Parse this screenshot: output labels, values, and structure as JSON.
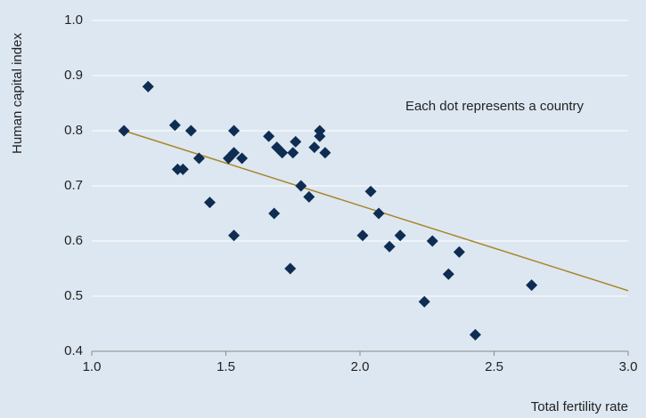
{
  "chart_data": {
    "type": "scatter",
    "ylabel": "Human capital index",
    "xlabel": "Total fertility rate",
    "annotation": "Each dot represents a country",
    "series": [
      {
        "color": "#0f2d52",
        "x": [
          1.12,
          1.21,
          1.31,
          1.32,
          1.34,
          1.37,
          1.4,
          1.44,
          1.51,
          1.53,
          1.53,
          1.53,
          1.56,
          1.66,
          1.68,
          1.69,
          1.71,
          1.74,
          1.75,
          1.76,
          1.78,
          1.81,
          1.83,
          1.85,
          1.85,
          1.87,
          2.01,
          2.04,
          2.07,
          2.11,
          2.15,
          2.24,
          2.27,
          2.33,
          2.37,
          2.43,
          2.64
        ],
        "values": [
          0.8,
          0.88,
          0.81,
          0.73,
          0.73,
          0.8,
          0.75,
          0.67,
          0.75,
          0.8,
          0.76,
          0.61,
          0.75,
          0.79,
          0.65,
          0.77,
          0.76,
          0.55,
          0.76,
          0.78,
          0.7,
          0.68,
          0.77,
          0.8,
          0.79,
          0.76,
          0.61,
          0.69,
          0.65,
          0.59,
          0.61,
          0.49,
          0.6,
          0.54,
          0.58,
          0.43,
          0.52
        ]
      }
    ],
    "trendline": {
      "color": "#a8862a",
      "x": [
        1.12,
        3.0
      ],
      "values": [
        0.8,
        0.51
      ]
    },
    "xlim": [
      1.0,
      3.0
    ],
    "ylim": [
      0.4,
      1.0
    ],
    "xticks": [
      {
        "value": 1.0,
        "label": "1.0"
      },
      1.5,
      {
        "value": 2.0,
        "label": "2.0"
      },
      2.5,
      {
        "value": 3.0,
        "label": "3.0"
      }
    ],
    "yticks": [
      0.4,
      0.5,
      0.6,
      0.7,
      0.8,
      0.9,
      {
        "value": 1.0,
        "label": "1.0"
      }
    ],
    "grid": true
  }
}
